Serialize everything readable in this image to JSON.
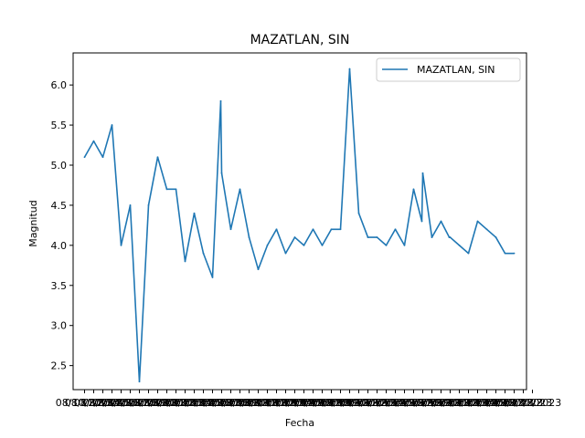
{
  "chart_data": {
    "type": "line",
    "title": "MAZATLAN, SIN",
    "xlabel": "Fecha",
    "ylabel": "Magnitud",
    "ylim": [
      2.2,
      6.4
    ],
    "yticks": [
      2.5,
      3.0,
      3.5,
      4.0,
      4.5,
      5.0,
      5.5,
      6.0
    ],
    "x_tick_labels": [
      "08/10/2023",
      "08/11/2023",
      "08/12/2023",
      "08/13/2023",
      "08/14/2023",
      "08/15/2023",
      "08/16/2023",
      "08/17/2023",
      "08/18/2023",
      "08/19/2023",
      "08/20/2023",
      "08/21/2023",
      "08/22/2023",
      "08/23/2023",
      "08/24/2023",
      "08/25/2023",
      "08/26/2023",
      "08/27/2023",
      "08/28/2023",
      "08/29/2023",
      "08/30/2023",
      "08/31/2023",
      "09/01/2023",
      "09/02/2023",
      "09/03/2023",
      "09/04/2023",
      "09/05/2023",
      "09/06/2023",
      "09/07/2023",
      "09/08/2023",
      "09/09/2023",
      "09/10/2023",
      "09/11/2023",
      "09/12/2023",
      "09/13/2023",
      "09/14/2023",
      "09/15/2023",
      "09/16/2023",
      "09/17/2023",
      "09/18/2023",
      "09/19/2023",
      "09/20/2023",
      "09/21/2023",
      "09/22/2023",
      "09/23/2023",
      "09/24/2023",
      "09/25/2023",
      "09/26/2023",
      "09/27/2023",
      "09/28/2023"
    ],
    "legend": "upper right",
    "series": [
      {
        "name": "MAZATLAN, SIN",
        "color": "#1f77b4",
        "x": [
          0,
          1,
          2,
          3,
          4,
          5,
          6,
          7,
          8,
          9,
          10,
          11,
          12,
          13,
          14,
          14.9,
          15,
          16,
          17,
          18,
          19,
          20,
          21,
          22,
          23,
          24,
          25,
          26,
          27,
          28,
          29,
          30,
          31,
          32,
          33,
          34,
          35,
          36,
          36.9,
          37,
          38,
          39,
          39.9,
          40,
          41,
          42,
          43,
          44,
          45,
          46,
          47
        ],
        "y": [
          5.1,
          5.3,
          5.1,
          5.5,
          4.0,
          4.5,
          2.3,
          4.5,
          5.1,
          4.7,
          4.7,
          3.8,
          4.4,
          3.9,
          3.6,
          5.8,
          4.9,
          4.2,
          4.7,
          4.1,
          3.7,
          4.0,
          4.2,
          3.9,
          4.1,
          4.0,
          4.2,
          4.0,
          4.2,
          4.2,
          6.2,
          4.4,
          4.1,
          4.1,
          4.0,
          4.2,
          4.0,
          4.7,
          4.3,
          4.9,
          4.1,
          4.3,
          4.1,
          4.1,
          4.0,
          3.9,
          4.3,
          4.2,
          4.1,
          3.9,
          3.9
        ]
      }
    ]
  }
}
